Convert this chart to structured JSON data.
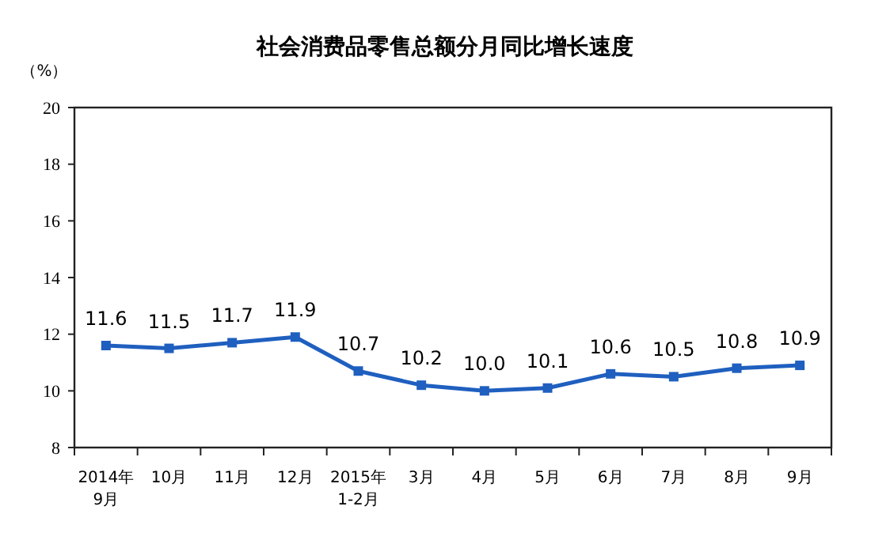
{
  "chart_data": {
    "type": "line",
    "title": "社会消费品零售总额分月同比增长速度",
    "ylabel": "（%）",
    "categories": [
      "2014年\n9月",
      "10月",
      "11月",
      "12月",
      "2015年\n1-2月",
      "3月",
      "4月",
      "5月",
      "6月",
      "7月",
      "8月",
      "9月"
    ],
    "series": [
      {
        "color": "#1f5fbf",
        "values": [
          11.6,
          11.5,
          11.7,
          11.9,
          10.7,
          10.2,
          10.0,
          10.1,
          10.6,
          10.5,
          10.8,
          10.9
        ]
      }
    ],
    "value_labels": [
      "11.6",
      "11.5",
      "11.7",
      "11.9",
      "10.7",
      "10.2",
      "10.0",
      "10.1",
      "10.6",
      "10.5",
      "10.8",
      "10.9"
    ],
    "ylim": [
      8,
      20
    ],
    "yticks": [
      8,
      10,
      12,
      14,
      16,
      18,
      20
    ],
    "grid": false,
    "marker": "square",
    "line_style": "solid"
  }
}
